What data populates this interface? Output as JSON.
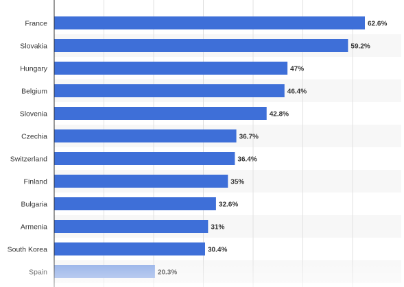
{
  "chart_data": {
    "type": "bar",
    "orientation": "horizontal",
    "categories": [
      "France",
      "Slovakia",
      "Hungary",
      "Belgium",
      "Slovenia",
      "Czechia",
      "Switzerland",
      "Finland",
      "Bulgaria",
      "Armenia",
      "South Korea",
      "Spain"
    ],
    "values": [
      62.6,
      59.2,
      47,
      46.4,
      42.8,
      36.7,
      36.4,
      35,
      32.6,
      31,
      30.4,
      20.3
    ],
    "value_labels": [
      "62.6%",
      "59.2%",
      "47%",
      "46.4%",
      "42.8%",
      "36.7%",
      "36.4%",
      "35%",
      "32.6%",
      "31%",
      "30.4%",
      "20.3%"
    ],
    "xlim": [
      0,
      70
    ],
    "grid": true,
    "bar_color": "#3e6fd8",
    "faded_bar_color": "#8aa9e6",
    "row_stripe_color": "#f7f7f7",
    "grid_color": "#e0e0e0",
    "axis_color": "#333333",
    "title": "",
    "xlabel": "",
    "ylabel": ""
  }
}
